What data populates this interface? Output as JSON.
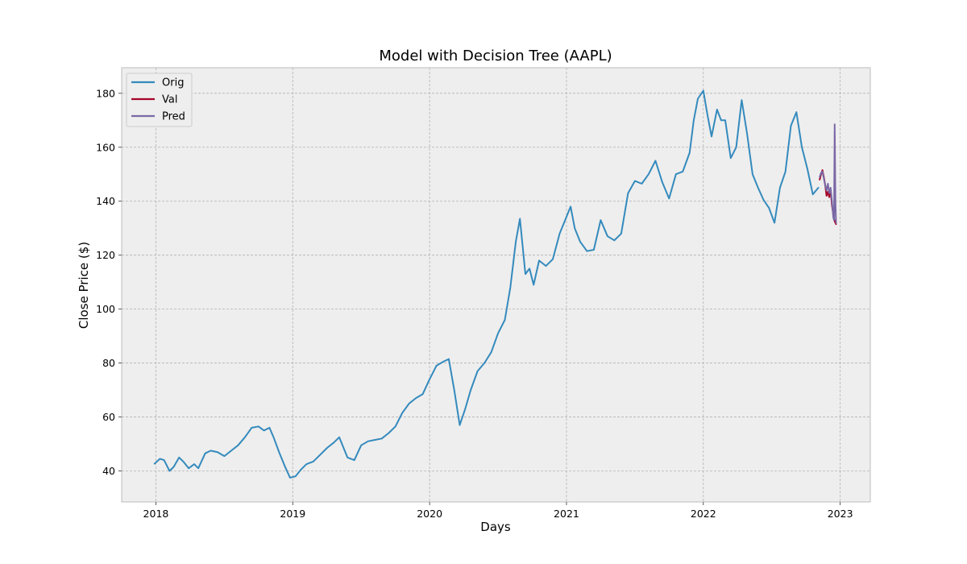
{
  "chart_data": {
    "type": "line",
    "title": "Model with Decision Tree (AAPL)",
    "xlabel": "Days",
    "ylabel": "Close Price ($)",
    "x_ticks": [
      "2018",
      "2019",
      "2020",
      "2021",
      "2022",
      "2023"
    ],
    "y_ticks": [
      40,
      60,
      80,
      100,
      120,
      140,
      160,
      180
    ],
    "xlim": [
      2017.75,
      2023.22
    ],
    "ylim": [
      28.5,
      189.5
    ],
    "grid": true,
    "legend_position": "top-left",
    "colors": {
      "Orig": "#348abd",
      "Val": "#a60628",
      "Pred": "#7a68a6"
    },
    "series": [
      {
        "name": "Orig",
        "x": [
          2017.99,
          2018.03,
          2018.06,
          2018.1,
          2018.13,
          2018.17,
          2018.2,
          2018.24,
          2018.28,
          2018.31,
          2018.36,
          2018.4,
          2018.45,
          2018.5,
          2018.55,
          2018.6,
          2018.65,
          2018.7,
          2018.75,
          2018.79,
          2018.83,
          2018.86,
          2018.9,
          2018.94,
          2018.98,
          2019.02,
          2019.06,
          2019.1,
          2019.15,
          2019.2,
          2019.25,
          2019.3,
          2019.34,
          2019.4,
          2019.45,
          2019.5,
          2019.55,
          2019.6,
          2019.65,
          2019.7,
          2019.75,
          2019.8,
          2019.85,
          2019.9,
          2019.95,
          2020.0,
          2020.05,
          2020.1,
          2020.14,
          2020.18,
          2020.22,
          2020.26,
          2020.3,
          2020.35,
          2020.4,
          2020.45,
          2020.5,
          2020.55,
          2020.59,
          2020.63,
          2020.66,
          2020.7,
          2020.73,
          2020.76,
          2020.8,
          2020.85,
          2020.9,
          2020.95,
          2020.99,
          2021.03,
          2021.06,
          2021.1,
          2021.15,
          2021.2,
          2021.25,
          2021.3,
          2021.35,
          2021.4,
          2021.45,
          2021.5,
          2021.55,
          2021.6,
          2021.65,
          2021.7,
          2021.75,
          2021.8,
          2021.85,
          2021.9,
          2021.93,
          2021.96,
          2022.0,
          2022.03,
          2022.06,
          2022.1,
          2022.13,
          2022.16,
          2022.2,
          2022.24,
          2022.28,
          2022.32,
          2022.36,
          2022.4,
          2022.44,
          2022.48,
          2022.52,
          2022.56,
          2022.6,
          2022.64,
          2022.68,
          2022.72,
          2022.76,
          2022.8,
          2022.84
        ],
        "y": [
          42.7,
          44.5,
          44.0,
          40.0,
          41.5,
          45.0,
          43.5,
          41.0,
          42.5,
          41.0,
          46.5,
          47.5,
          47.0,
          45.5,
          47.5,
          49.5,
          52.5,
          56.0,
          56.5,
          55.0,
          56.0,
          52.5,
          47.0,
          42.0,
          37.5,
          38.0,
          40.5,
          42.5,
          43.5,
          46.0,
          48.5,
          50.5,
          52.5,
          45.0,
          44.0,
          49.5,
          51.0,
          51.5,
          52.0,
          54.0,
          56.5,
          61.5,
          65.0,
          67.0,
          68.5,
          74.0,
          79.0,
          80.5,
          81.5,
          70.0,
          57.0,
          63.0,
          70.0,
          77.0,
          80.0,
          84.0,
          91.0,
          96.0,
          108.0,
          125.0,
          133.5,
          113.0,
          115.0,
          109.0,
          118.0,
          116.0,
          118.5,
          128.0,
          133.0,
          138.0,
          130.0,
          125.0,
          121.5,
          122.0,
          133.0,
          127.0,
          125.5,
          128.0,
          143.0,
          147.5,
          146.5,
          150.0,
          155.0,
          147.0,
          141.0,
          150.0,
          151.0,
          158.0,
          170.0,
          178.0,
          181.0,
          172.0,
          164.0,
          174.0,
          170.0,
          170.0,
          156.0,
          160.0,
          177.5,
          165.0,
          150.0,
          145.0,
          140.5,
          137.5,
          132.0,
          145.0,
          151.0,
          168.0,
          173.0,
          160.0,
          152.0,
          142.5,
          145.0
        ]
      },
      {
        "name": "Val",
        "x": [
          2022.85,
          2022.86,
          2022.87,
          2022.88,
          2022.89,
          2022.9,
          2022.91,
          2022.92,
          2022.93,
          2022.94,
          2022.95,
          2022.96,
          2022.97
        ],
        "y": [
          148.0,
          150.0,
          151.5,
          149.0,
          146.0,
          142.0,
          143.5,
          141.5,
          144.0,
          138.5,
          135.0,
          132.5,
          131.5
        ]
      },
      {
        "name": "Pred",
        "x": [
          2022.85,
          2022.86,
          2022.87,
          2022.88,
          2022.89,
          2022.9,
          2022.91,
          2022.92,
          2022.93,
          2022.94,
          2022.95,
          2022.955,
          2022.96,
          2022.965,
          2022.97
        ],
        "y": [
          149.0,
          150.5,
          151.0,
          148.5,
          146.0,
          144.0,
          146.5,
          143.0,
          145.0,
          140.0,
          134.0,
          133.0,
          168.5,
          140.0,
          132.0
        ]
      }
    ]
  }
}
